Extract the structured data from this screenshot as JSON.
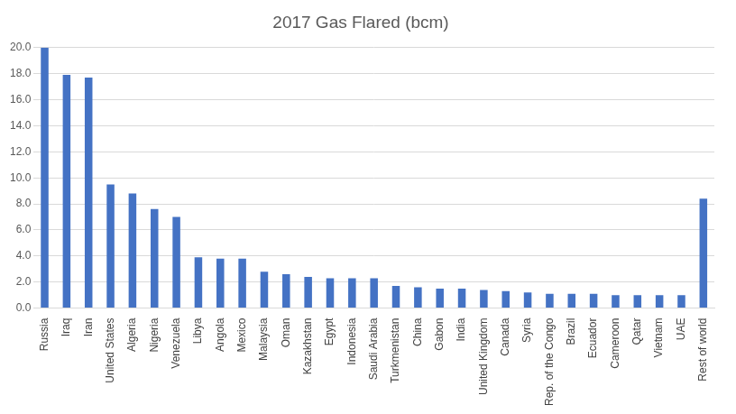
{
  "chart_data": {
    "type": "bar",
    "title": "2017 Gas Flared (bcm)",
    "categories": [
      "Russia",
      "Iraq",
      "Iran",
      "United States",
      "Algeria",
      "Nigeria",
      "Venezuela",
      "Libya",
      "Angola",
      "Mexico",
      "Malaysia",
      "Oman",
      "Kazakhstan",
      "Egypt",
      "Indonesia",
      "Saudi Arabia",
      "Turkmenistan",
      "China",
      "Gabon",
      "India",
      "United Kingdom",
      "Canada",
      "Syria",
      "Rep. of the Congo",
      "Brazil",
      "Ecuador",
      "Cameroon",
      "Qatar",
      "Vietnam",
      "UAE",
      "Rest of world"
    ],
    "values": [
      20.0,
      17.9,
      17.7,
      9.5,
      8.8,
      7.6,
      7.0,
      3.9,
      3.8,
      3.8,
      2.8,
      2.6,
      2.4,
      2.3,
      2.3,
      2.3,
      1.7,
      1.6,
      1.5,
      1.5,
      1.4,
      1.3,
      1.2,
      1.1,
      1.1,
      1.1,
      1.0,
      1.0,
      1.0,
      1.0,
      8.4
    ],
    "color": "#4472c4",
    "ylim": [
      0,
      20
    ],
    "yticks": [
      {
        "value": 0,
        "label": "0.0"
      },
      {
        "value": 2,
        "label": "2.0"
      },
      {
        "value": 4,
        "label": "4.0"
      },
      {
        "value": 6,
        "label": "6.0"
      },
      {
        "value": 8,
        "label": "8.0"
      },
      {
        "value": 10,
        "label": "10.0"
      },
      {
        "value": 12,
        "label": "12.0"
      },
      {
        "value": 14,
        "label": "14.0"
      },
      {
        "value": 16,
        "label": "16.0"
      },
      {
        "value": 18,
        "label": "18.0"
      },
      {
        "value": 20,
        "label": "20.0"
      }
    ],
    "grid": true
  }
}
